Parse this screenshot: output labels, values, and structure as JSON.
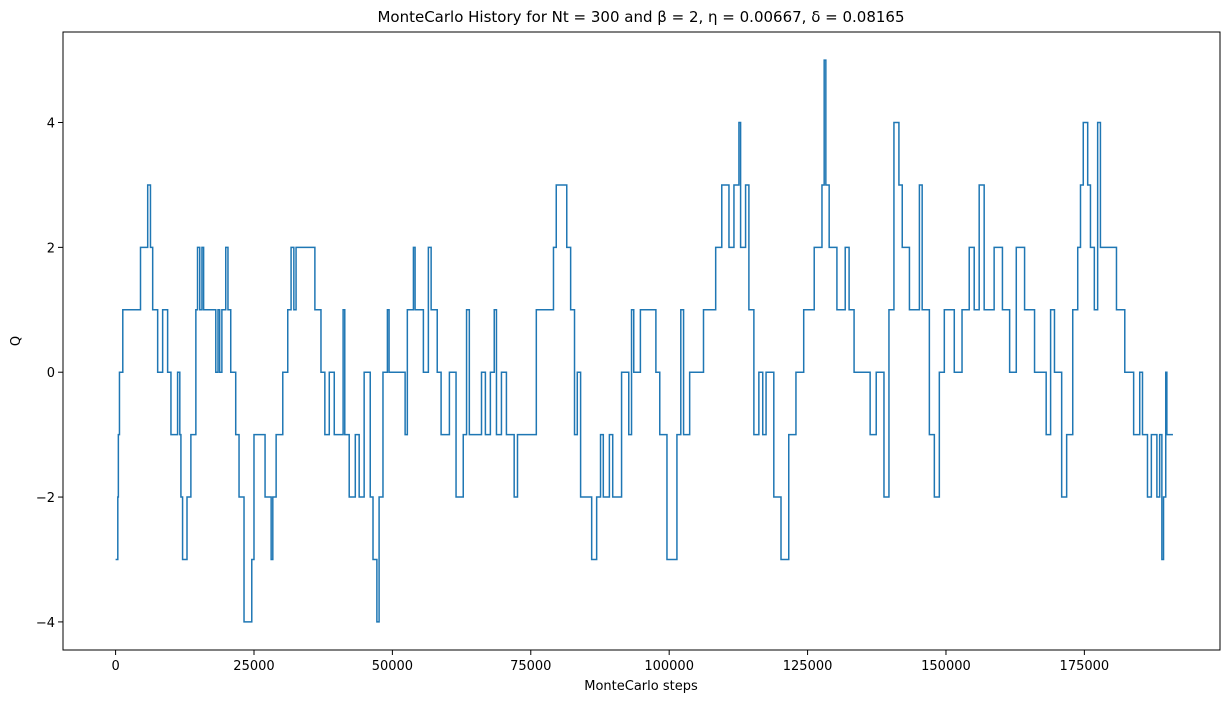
{
  "chart_data": {
    "type": "line",
    "step": true,
    "title": "MonteCarlo History for Nt = 300 and  β = 2, η = 0.00667, δ = 0.08165",
    "x_label": "MonteCarlo steps",
    "y_label": "Q",
    "xlim": [
      -9500,
      199500
    ],
    "ylim": [
      -4.45,
      5.45
    ],
    "xticks": [
      0,
      25000,
      50000,
      75000,
      100000,
      125000,
      150000,
      175000
    ],
    "yticks": [
      {
        "value": -4,
        "label": "−4"
      },
      {
        "value": -2,
        "label": "−2"
      },
      0,
      2,
      4
    ],
    "x": [
      0,
      400,
      500,
      700,
      1300,
      4500,
      5800,
      6300,
      6700,
      7600,
      8500,
      9400,
      10000,
      11200,
      11600,
      11800,
      12100,
      12900,
      13600,
      14500,
      14800,
      15200,
      15600,
      15900,
      18100,
      18500,
      18800,
      19200,
      19900,
      20300,
      20800,
      21700,
      22300,
      23200,
      24600,
      25000,
      27000,
      28100,
      28400,
      29000,
      30200,
      31100,
      31700,
      32200,
      32600,
      36000,
      37100,
      37800,
      38600,
      39500,
      41100,
      41400,
      42200,
      43300,
      44000,
      44900,
      46000,
      46500,
      47200,
      47600,
      48300,
      49100,
      49400,
      52300,
      52700,
      53800,
      54100,
      55600,
      56500,
      57000,
      58100,
      58800,
      60300,
      61500,
      62800,
      63400,
      63900,
      66100,
      66800,
      67700,
      68400,
      68800,
      69700,
      70600,
      72000,
      72600,
      76000,
      79100,
      79600,
      81500,
      82200,
      82900,
      83400,
      84000,
      86000,
      86900,
      87600,
      88100,
      89200,
      89800,
      91400,
      92700,
      93200,
      93600,
      94800,
      97600,
      98300,
      99600,
      101400,
      102100,
      102600,
      103700,
      106200,
      108400,
      109500,
      110800,
      111700,
      112600,
      112900,
      113800,
      114400,
      115300,
      116200,
      116900,
      117500,
      118900,
      120200,
      121600,
      122900,
      124300,
      126200,
      127600,
      128000,
      128300,
      128900,
      130300,
      131800,
      132500,
      133400,
      136300,
      137400,
      138800,
      139700,
      140600,
      141500,
      142100,
      143400,
      145200,
      145700,
      147000,
      147900,
      148800,
      149700,
      151500,
      152900,
      154200,
      155100,
      156000,
      156900,
      158700,
      160200,
      161500,
      162700,
      164200,
      166000,
      168100,
      168900,
      169600,
      170900,
      171800,
      172900,
      173800,
      174300,
      174800,
      175600,
      176100,
      176800,
      177400,
      177900,
      180800,
      182300,
      183900,
      185000,
      185500,
      186400,
      187100,
      188100,
      188600,
      189000,
      189300,
      189700,
      189900,
      191000
    ],
    "series": [
      {
        "name": "Q",
        "color": "#1f77b4",
        "values": [
          -3,
          -2,
          -1,
          0,
          1,
          2,
          3,
          2,
          1,
          0,
          1,
          0,
          -1,
          0,
          -1,
          -2,
          -3,
          -2,
          -1,
          1,
          2,
          1,
          2,
          1,
          0,
          1,
          0,
          1,
          2,
          1,
          0,
          -1,
          -2,
          -4,
          -3,
          -1,
          -2,
          -3,
          -2,
          -1,
          0,
          1,
          2,
          1,
          2,
          1,
          0,
          -1,
          0,
          -1,
          1,
          -1,
          -2,
          -1,
          -2,
          0,
          -2,
          -3,
          -4,
          -2,
          0,
          1,
          0,
          -1,
          1,
          2,
          1,
          0,
          2,
          1,
          0,
          -1,
          0,
          -2,
          -1,
          1,
          -1,
          0,
          -1,
          0,
          1,
          -1,
          0,
          -1,
          -2,
          -1,
          1,
          2,
          3,
          2,
          1,
          -1,
          0,
          -2,
          -3,
          -2,
          -1,
          -2,
          -1,
          -2,
          0,
          -1,
          1,
          0,
          1,
          0,
          -1,
          -3,
          -1,
          1,
          -1,
          0,
          1,
          2,
          3,
          2,
          3,
          4,
          2,
          3,
          1,
          -1,
          0,
          -1,
          0,
          -2,
          -3,
          -1,
          0,
          1,
          2,
          3,
          5,
          3,
          2,
          1,
          2,
          1,
          0,
          -1,
          0,
          -2,
          1,
          4,
          3,
          2,
          1,
          3,
          1,
          -1,
          -2,
          0,
          1,
          0,
          1,
          2,
          1,
          3,
          1,
          2,
          1,
          0,
          2,
          1,
          0,
          -1,
          1,
          0,
          -2,
          -1,
          1,
          2,
          3,
          4,
          3,
          2,
          1,
          4,
          2,
          1,
          0,
          -1,
          0,
          -1,
          -2,
          -1,
          -2,
          -1,
          -3,
          -2,
          0,
          -1,
          -1
        ]
      }
    ]
  }
}
